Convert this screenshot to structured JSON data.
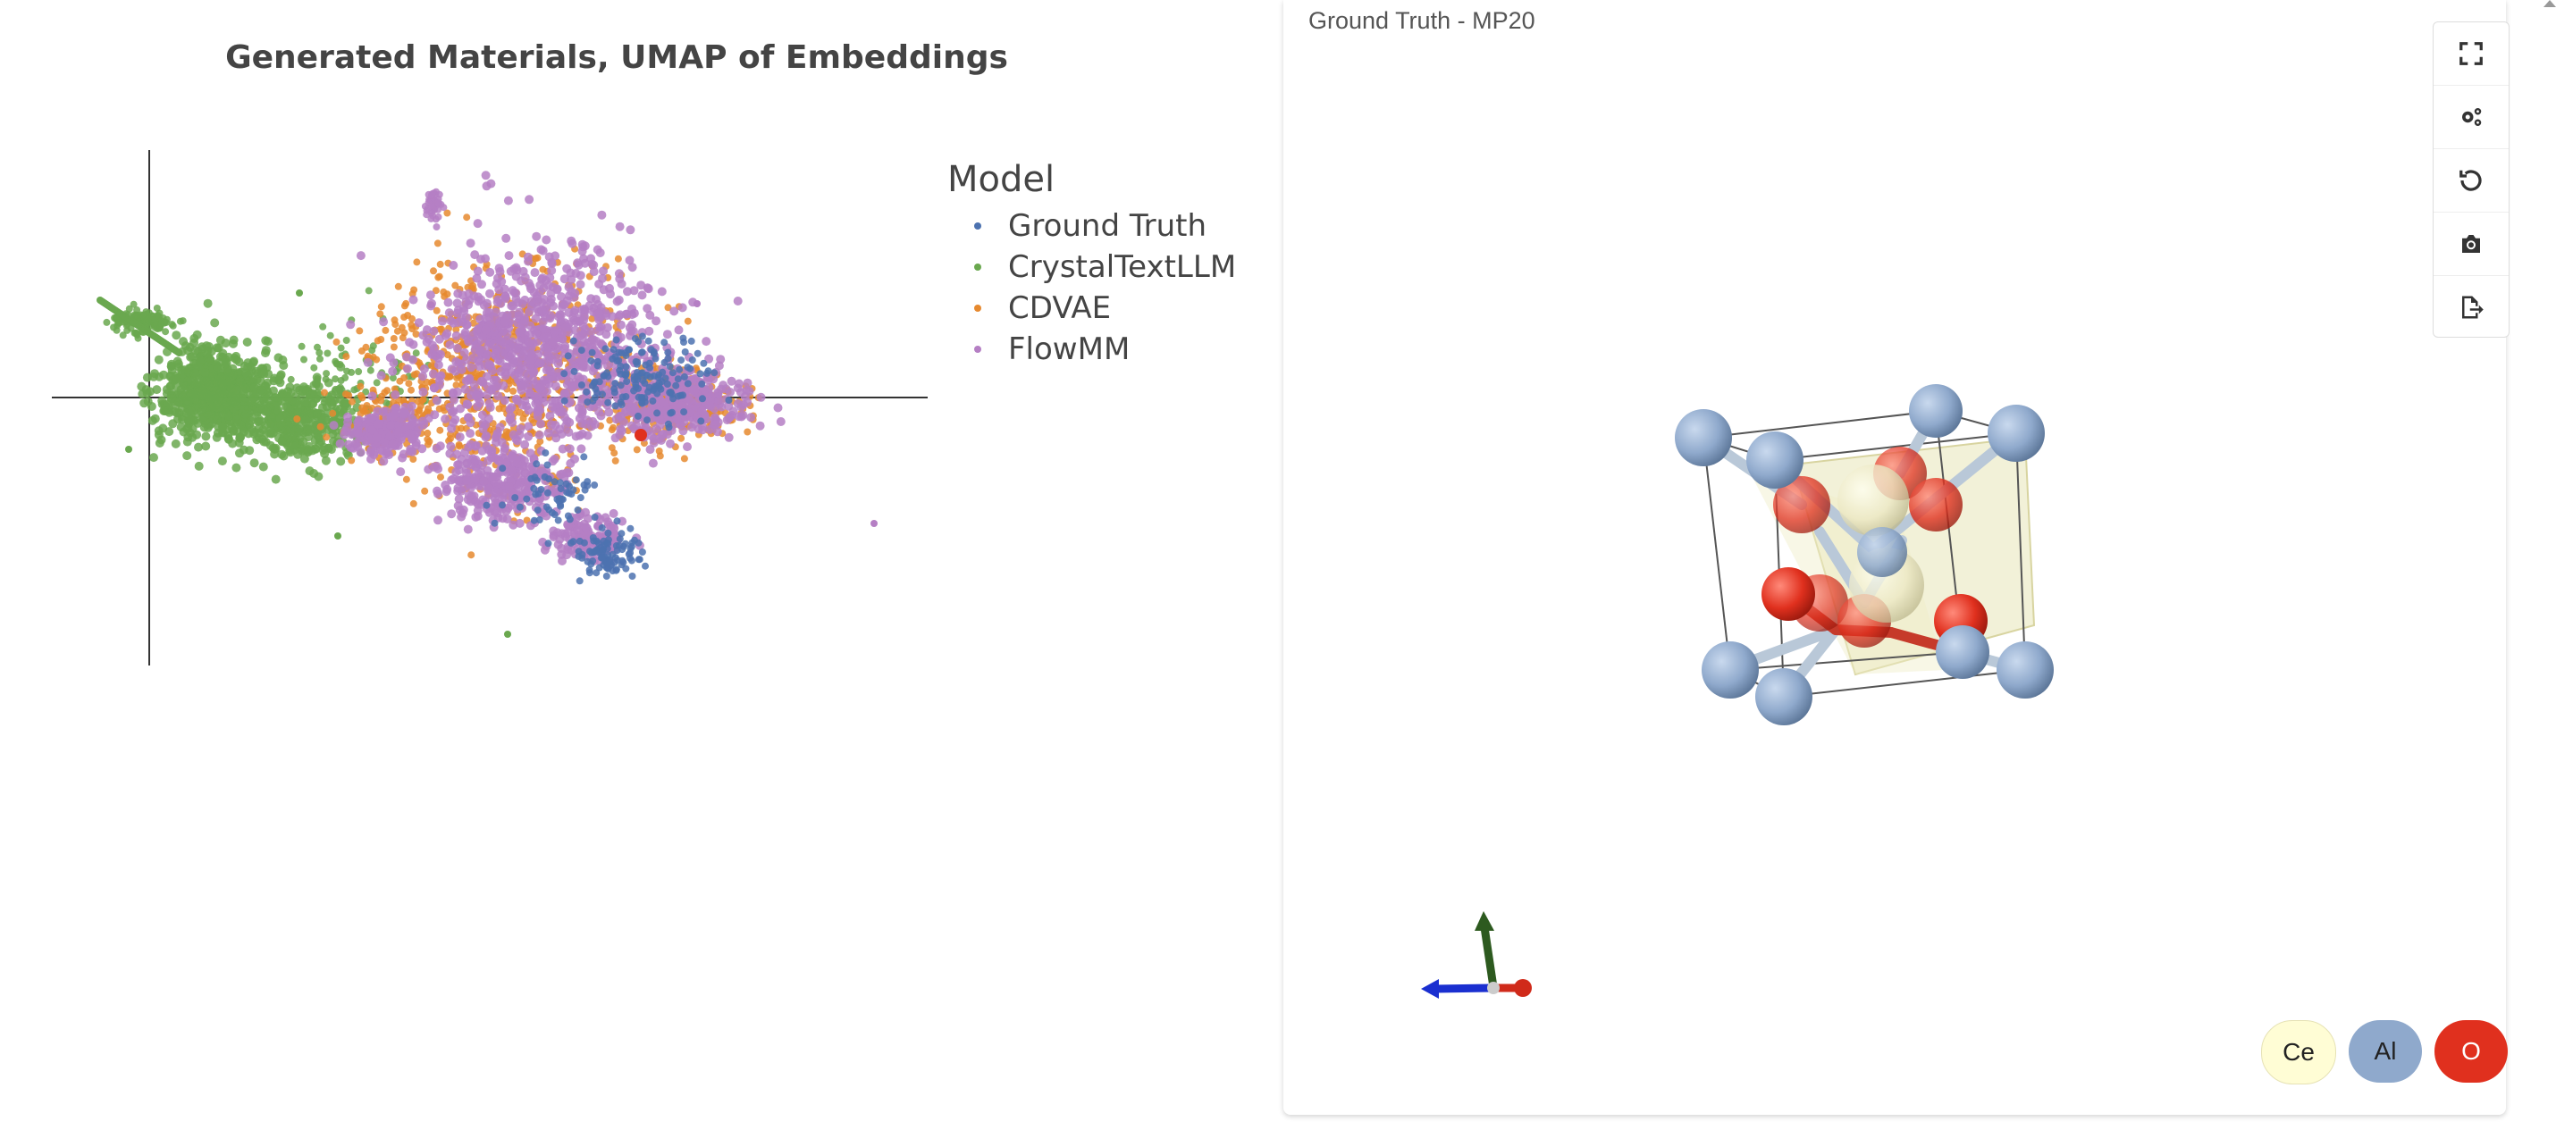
{
  "plot": {
    "title": "Generated Materials, UMAP of Embeddings"
  },
  "legend": {
    "title": "Model",
    "items": [
      {
        "label": "Ground Truth",
        "color": "#4c72b0"
      },
      {
        "label": "CrystalTextLLM",
        "color": "#6aa84f"
      },
      {
        "label": "CDVAE",
        "color": "#e6892f"
      },
      {
        "label": "FlowMM",
        "color": "#b57fc4"
      }
    ]
  },
  "viewer": {
    "title": "Ground Truth - MP20",
    "toolbar": [
      {
        "icon": "fullscreen-icon"
      },
      {
        "icon": "settings-icon"
      },
      {
        "icon": "reset-view-icon"
      },
      {
        "icon": "camera-icon"
      },
      {
        "icon": "export-icon"
      }
    ],
    "elements": [
      {
        "symbol": "Ce",
        "color": "#fffdd5",
        "text_color": "#222222"
      },
      {
        "symbol": "Al",
        "color": "#8fa9cc",
        "text_color": "#222222"
      },
      {
        "symbol": "O",
        "color": "#e0301e",
        "text_color": "#ffffff"
      }
    ]
  },
  "chart_data": {
    "type": "scatter",
    "title": "Generated Materials, UMAP of Embeddings",
    "xlabel": "",
    "ylabel": "",
    "legend_title": "Model",
    "legend_position": "right",
    "grid": false,
    "series": [
      {
        "name": "Ground Truth",
        "color": "#4c72b0"
      },
      {
        "name": "CrystalTextLLM",
        "color": "#6aa84f"
      },
      {
        "name": "CDVAE",
        "color": "#e6892f"
      },
      {
        "name": "FlowMM",
        "color": "#b57fc4"
      }
    ],
    "highlighted_point": {
      "color": "#e0301e"
    }
  }
}
